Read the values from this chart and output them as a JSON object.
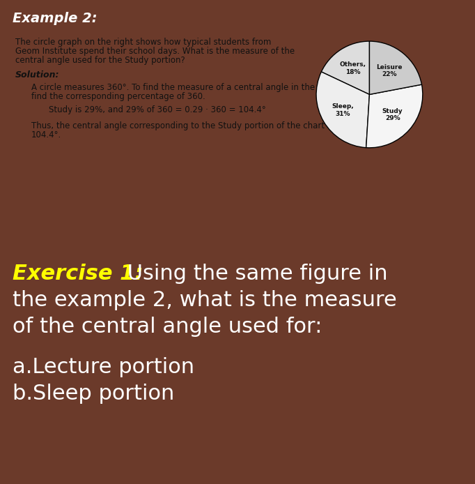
{
  "title": "Example 2:",
  "title_bg": "#6B3A2A",
  "title_color": "#FFFFFF",
  "title_fontsize": 14,
  "white_box_bg": "#EEECEA",
  "white_box_border": "#AAAAAA",
  "white_box_text_color": "#111111",
  "problem_text_line1": "The circle graph on the right shows how typical students from",
  "problem_text_line2": "Geom Institute spend their school days. What is the measure of the",
  "problem_text_line3": "central angle used for the Study portion?",
  "solution_label": "Solution:",
  "solution_body_1a": "A circle measures 360°. To find the measure of a central angle in the circle graph,",
  "solution_body_1b": "find the corresponding percentage of 360.",
  "solution_body_2": "Study is 29%, and 29% of 360 = 0.29 · 360 = 104.4°",
  "solution_body_3a": "Thus, the central angle corresponding to the Study portion of the chart measures",
  "solution_body_3b": "104.4°.",
  "pie_slices": [
    18,
    31,
    29,
    22
  ],
  "pie_labels": [
    "Others,\n18%",
    "Sleep,\n31%",
    "Study\n29%",
    "Leisure\n22%"
  ],
  "pie_colors": [
    "#DDDDDD",
    "#EEEEEE",
    "#F5F5F5",
    "#CCCCCC"
  ],
  "pie_startangle": 90,
  "exercise_bg": "#4A4535",
  "exercise_label": "Exercise 1:",
  "exercise_label_color": "#FFFF00",
  "exercise_rest": " Using the same figure in",
  "exercise_line2": "the example 2, what is the measure",
  "exercise_line3": "of the central angle used for:",
  "exercise_text_color": "#FFFFFF",
  "exercise_fontsize": 22,
  "part_a": "a.Lecture portion",
  "part_b": "b.Sleep portion",
  "parts_color": "#FFFFFF",
  "parts_fontsize": 22,
  "separator_color": "#CCCCCC"
}
